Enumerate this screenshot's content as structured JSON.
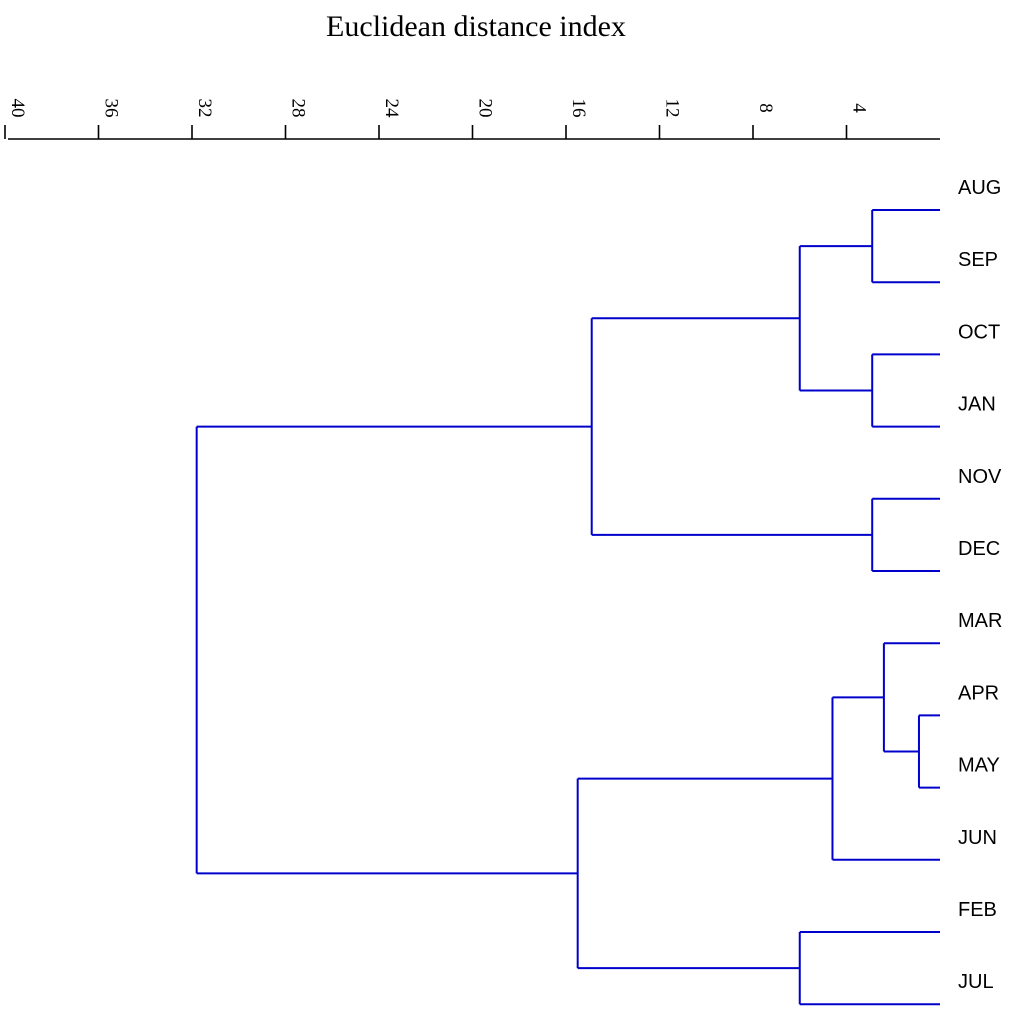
{
  "chart_data": {
    "type": "dendrogram",
    "title": "Euclidean distance index",
    "axis": {
      "range": [
        0,
        40
      ],
      "ticks": [
        40,
        36,
        32,
        28,
        24,
        20,
        16,
        12,
        8,
        4
      ],
      "tick_labels": [
        "40",
        "36",
        "32",
        "28",
        "24",
        "20",
        "16",
        "12",
        "8",
        "4"
      ]
    },
    "leaves": [
      "AUG",
      "SEP",
      "OCT",
      "JAN",
      "NOV",
      "DEC",
      "MAR",
      "APR",
      "MAY",
      "JUN",
      "FEB",
      "JUL"
    ],
    "merges": [
      {
        "id": "m1",
        "left": "AUG",
        "right": "SEP",
        "height": 2.9
      },
      {
        "id": "m2",
        "left": "OCT",
        "right": "JAN",
        "height": 2.9
      },
      {
        "id": "m3",
        "left": "m1",
        "right": "m2",
        "height": 6.0
      },
      {
        "id": "m4",
        "left": "NOV",
        "right": "DEC",
        "height": 2.9
      },
      {
        "id": "m5",
        "left": "m3",
        "right": "m4",
        "height": 14.9
      },
      {
        "id": "m6",
        "left": "APR",
        "right": "MAY",
        "height": 0.9
      },
      {
        "id": "m7",
        "left": "MAR",
        "right": "m6",
        "height": 2.4
      },
      {
        "id": "m8",
        "left": "m7",
        "right": "JUN",
        "height": 4.6
      },
      {
        "id": "m9",
        "left": "FEB",
        "right": "JUL",
        "height": 6.0
      },
      {
        "id": "m10",
        "left": "m8",
        "right": "m9",
        "height": 15.5
      },
      {
        "id": "m11",
        "left": "m5",
        "right": "m10",
        "height": 31.8
      }
    ]
  }
}
